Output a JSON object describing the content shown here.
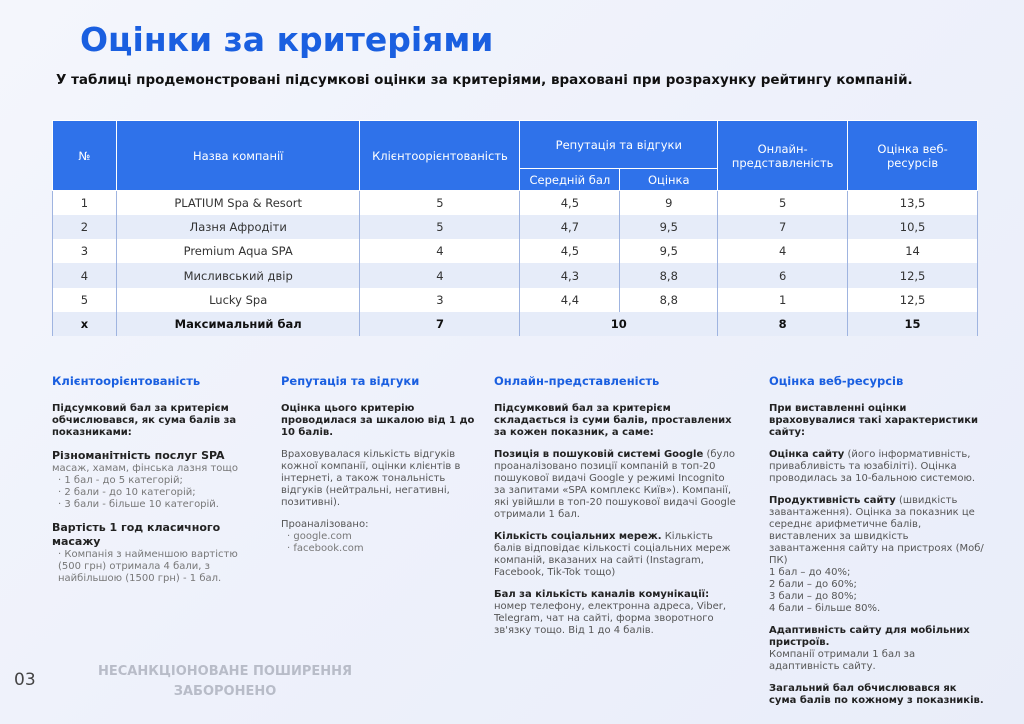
{
  "title": "Оцінки за критеріями",
  "subtitle": "У таблиці продемонстровані підсумкові оцінки за критеріями,  враховані при розрахунку рейтингу компаній.",
  "table": {
    "headers": {
      "num": "№",
      "name": "Назва компанії",
      "client": "Клієнтоорієнтованість",
      "reputation": "Репутація та відгуки",
      "avg": "Середній бал",
      "score": "Оцінка",
      "online": "Онлайн-представленість",
      "web": "Оцінка веб-ресурсів"
    },
    "rows": [
      {
        "num": "1",
        "name": "PLATIUM Spa & Resort",
        "client": "5",
        "avg": "4,5",
        "score": "9",
        "online": "5",
        "web": "13,5"
      },
      {
        "num": "2",
        "name": "Лазня Афродіти",
        "client": "5",
        "avg": "4,7",
        "score": "9,5",
        "online": "7",
        "web": "10,5"
      },
      {
        "num": "3",
        "name": "Premium Aqua SPA",
        "client": "4",
        "avg": "4,5",
        "score": "9,5",
        "online": "4",
        "web": "14"
      },
      {
        "num": "4",
        "name": "Мисливський двір",
        "client": "4",
        "avg": "4,3",
        "score": "8,8",
        "online": "6",
        "web": "12,5"
      },
      {
        "num": "5",
        "name": "Lucky Spa",
        "client": "3",
        "avg": "4,4",
        "score": "8,8",
        "online": "1",
        "web": "12,5"
      }
    ],
    "max": {
      "num": "x",
      "name": "Максимальний бал",
      "client": "7",
      "reputation": "10",
      "online": "8",
      "web": "15"
    }
  },
  "sections": {
    "client": {
      "title": "Клієнтоорієнтованість",
      "intro": "Підсумковий бал за критерієм обчислювався, як сума балів за показниками:",
      "h1": "Різноманітність послуг SPA",
      "d1": "масаж, хамам, фінська лазня тощо",
      "items1": [
        "1 бал - до 5 категорій;",
        "2 бали - до 10 категорій;",
        "3 бали - більше 10 категорій."
      ],
      "h2": "Вартість 1 год класичного масажу",
      "items2": [
        "Компанія з найменшою вартістю (500 грн) отримала 4 бали, з найбільшою (1500 грн) - 1 бал."
      ]
    },
    "reputation": {
      "title": "Репутація та відгуки",
      "intro": "Оцінка цього критерію проводилася за шкалою від 1 до 10 балів.",
      "p1": "Враховувалася кількість відгуків кожної компанії, оцінки клієнтів в інтернеті, а також тональність відгуків (нейтральні, негативні, позитивні).",
      "p2": "Проаналізовано:",
      "items": [
        "google.com",
        "facebook.com"
      ]
    },
    "online": {
      "title": "Онлайн-представленість",
      "intro": "Підсумковий бал за критерієм складається із суми балів, проставлених за кожен показник, а саме:",
      "b1": "Позиція в пошуковій системі Google",
      "t1": " (було проаналізовано позиції компаній в топ-20 пошукової видачі Google у режимі Incognito за запитами «SPA комплекс Київ»). Компанії, які увійшли в топ-20 пошукової видачі Google отримали 1 бал.",
      "b2": "Кількість соціальних мереж.",
      "t2": " Кількість балів відповідає кількості соціальних мереж компаній, вказаних на сайті (Instagram, Facebook, Tik-Tok тощо)",
      "b3": "Бал за кількість каналів комунікації:",
      "t3": " номер телефону,  електронна адреса, Viber, Telegram, чат на сайті, форма зворотного зв'язку тощо. Від 1 до 4 балів."
    },
    "web": {
      "title": "Оцінка веб-ресурсів",
      "intro": "При виставленні оцінки враховувалися такі характеристики сайту:",
      "b1": "Оцінка сайту",
      "t1": " (його інформативність, привабливість та юзабіліті). Оцінка проводилась за 10-бальною системою.",
      "b2": "Продуктивність сайту",
      "t2": " (швидкість завантаження). Оцінка за показник це середнє арифметичне балів, виставлених за швидкість завантаження сайту на пристроях (Моб/ПК)",
      "scale": [
        "1 бал – до 40%;",
        "2 бали – до 60%;",
        "3 бали – до 80%;",
        "4 бали – більше 80%."
      ],
      "b3": "Адаптивність сайту для мобільних пристроїв.",
      "t3": "Компанії отримали 1 бал за адаптивність сайту.",
      "b4": "Загальний бал обчислювався як сума балів по кожному з показників."
    }
  },
  "footer": {
    "page": "03",
    "watermark_line1": "НЕСАНКЦІОНОВАНЕ ПОШИРЕННЯ",
    "watermark_line2": "ЗАБОРОНЕНО"
  }
}
